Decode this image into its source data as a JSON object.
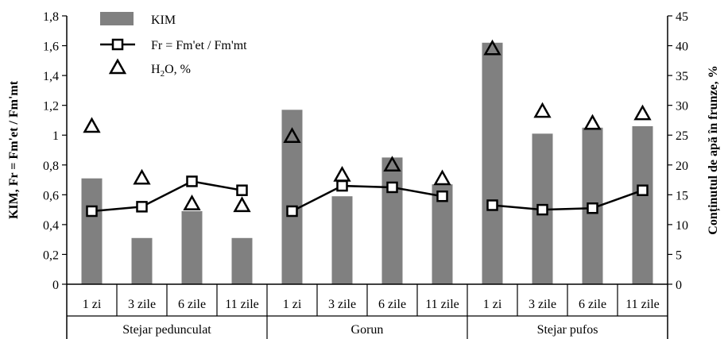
{
  "chart_data": {
    "type": "bar",
    "categories": [
      "1 zi",
      "3 zile",
      "6 zile",
      "11 zile",
      "1 zi",
      "3 zile",
      "6 zile",
      "11 zile",
      "1 zi",
      "3 zile",
      "6 zile",
      "11 zile"
    ],
    "groups": [
      {
        "label": "Stejar pedunculat",
        "from": 0,
        "to": 3
      },
      {
        "label": "Gorun",
        "from": 4,
        "to": 7
      },
      {
        "label": "Stejar pufos",
        "from": 8,
        "to": 11
      }
    ],
    "series": [
      {
        "name": "KIM",
        "kind": "bar",
        "axis": "left",
        "color": "#808080",
        "values": [
          0.71,
          0.31,
          0.49,
          0.31,
          1.17,
          0.59,
          0.85,
          0.67,
          1.62,
          1.01,
          1.05,
          1.06
        ]
      },
      {
        "name": "Fr = Fm'et / Fm'mt",
        "kind": "line",
        "marker": "square",
        "axis": "left",
        "color": "#000000",
        "values": [
          0.49,
          0.52,
          0.69,
          0.63,
          0.49,
          0.66,
          0.65,
          0.59,
          0.53,
          0.5,
          0.51,
          0.63
        ]
      },
      {
        "name_main": "H",
        "name_sub": "2",
        "name_tail": "O, %",
        "kind": "marker",
        "marker": "triangle",
        "axis": "right",
        "color": "#000000",
        "values": [
          26.5,
          17.8,
          13.5,
          13.2,
          24.8,
          18.3,
          20.0,
          17.7,
          39.5,
          29.0,
          27.0,
          28.6
        ]
      }
    ],
    "ylabel": "KIM, Fr = Fm'et / Fm'mt",
    "ylim": [
      0,
      1.8
    ],
    "yticks": [
      "0",
      "0,2",
      "0,4",
      "0,6",
      "0,8",
      "1",
      "1,2",
      "1,4",
      "1,6",
      "1,8"
    ],
    "y2label": "Conținutul de apă în frunze, %",
    "y2lim": [
      0,
      45
    ],
    "y2ticks": [
      "0",
      "5",
      "10",
      "15",
      "20",
      "25",
      "30",
      "35",
      "40",
      "45"
    ],
    "legend_position": "top-left",
    "grid": false
  }
}
